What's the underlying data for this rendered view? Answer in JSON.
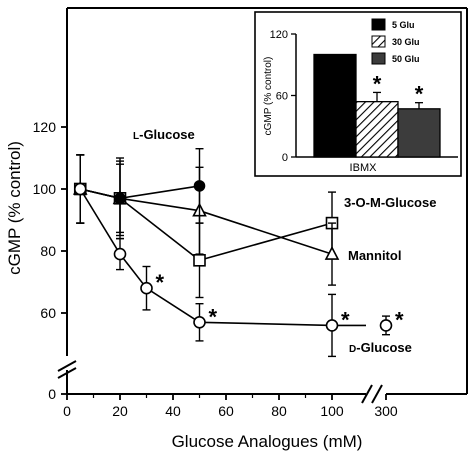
{
  "chart_data": [
    {
      "type": "line",
      "title": "",
      "xlabel": "Glucose Analogues (mM)",
      "ylabel": "cGMP (% control)",
      "x_ticks": [
        "0",
        "20",
        "40",
        "60",
        "80",
        "100",
        "300"
      ],
      "y_ticks": [
        "0",
        "60",
        "80",
        "100",
        "120"
      ],
      "xlim": [
        0,
        300
      ],
      "ylim": [
        0,
        120
      ],
      "x_axis_break": "between 100 and 300",
      "y_axis_break": "between 0 and 60",
      "grid": false,
      "series": [
        {
          "name": "L-Glucose",
          "label_parts": [
            "L",
            "-Glucose"
          ],
          "marker": "filled-circle",
          "points": [
            {
              "x": 5,
              "y": 100,
              "err": 11,
              "sig": false
            },
            {
              "x": 20,
              "y": 97,
              "err": 13,
              "sig": false
            },
            {
              "x": 50,
              "y": 101,
              "err": 12,
              "sig": false
            }
          ]
        },
        {
          "name": "3-O-M-Glucose",
          "label_parts": [
            "3-O-M-Glucose"
          ],
          "marker": "open-square",
          "points": [
            {
              "x": 5,
              "y": 100,
              "err": 11,
              "sig": false
            },
            {
              "x": 20,
              "y": 97,
              "err": 12,
              "sig": false
            },
            {
              "x": 50,
              "y": 77,
              "err": 12,
              "sig": false
            },
            {
              "x": 100,
              "y": 89,
              "err": 10,
              "sig": false
            }
          ]
        },
        {
          "name": "Mannitol",
          "label_parts": [
            "Mannitol"
          ],
          "marker": "open-triangle",
          "points": [
            {
              "x": 5,
              "y": 100,
              "err": 11,
              "sig": false
            },
            {
              "x": 20,
              "y": 97,
              "err": 11,
              "sig": false
            },
            {
              "x": 50,
              "y": 93,
              "err": 14,
              "sig": false
            },
            {
              "x": 100,
              "y": 79,
              "err": 10,
              "sig": false
            }
          ]
        },
        {
          "name": "D-Glucose",
          "label_parts": [
            "D",
            "-Glucose"
          ],
          "marker": "open-circle",
          "points": [
            {
              "x": 5,
              "y": 100,
              "err": 11,
              "sig": false
            },
            {
              "x": 20,
              "y": 79,
              "err": 5,
              "sig": false
            },
            {
              "x": 30,
              "y": 68,
              "err": 7,
              "sig": true
            },
            {
              "x": 50,
              "y": 57,
              "err": 6,
              "sig": true
            },
            {
              "x": 100,
              "y": 56,
              "err": 10,
              "sig": true
            },
            {
              "x": 300,
              "y": 56,
              "err": 3,
              "sig": true
            }
          ]
        }
      ],
      "significance_marker": "*"
    },
    {
      "type": "bar",
      "title": "",
      "xlabel": "IBMX",
      "ylabel": "cGMP (% control)",
      "ylim": [
        0,
        120
      ],
      "y_ticks": [
        "0",
        "60",
        "120"
      ],
      "legend_position": "top-right",
      "grid": false,
      "categories": [
        "IBMX"
      ],
      "series": [
        {
          "name": "5 Glu",
          "value": 100,
          "err": 0,
          "sig": false,
          "fill": "solid-black"
        },
        {
          "name": "30 Glu",
          "value": 54,
          "err": 9,
          "sig": true,
          "fill": "diagonal-hatch"
        },
        {
          "name": "50 Glu",
          "value": 47,
          "err": 6,
          "sig": true,
          "fill": "dark-gray"
        }
      ]
    }
  ]
}
